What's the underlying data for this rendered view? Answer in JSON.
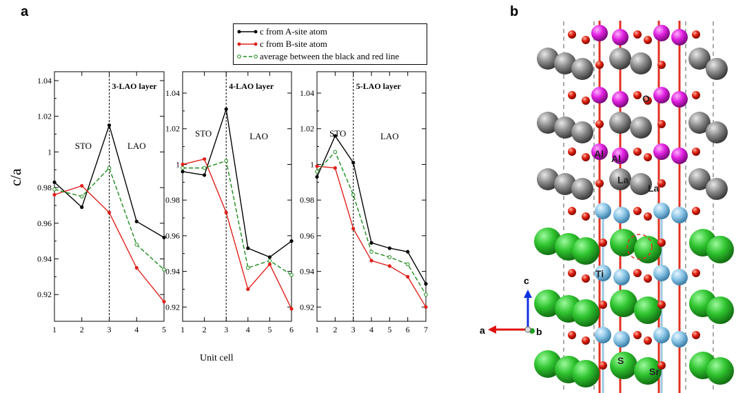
{
  "panel_labels": {
    "a": "a",
    "b": "b"
  },
  "legend": {
    "items": [
      {
        "label": "c from A-site atom",
        "color": "#000000",
        "style": "solid"
      },
      {
        "label": "c from B-site atom",
        "color": "#e0201a",
        "style": "solid"
      },
      {
        "label": "average between the black and red line",
        "color": "#1a8a1a",
        "style": "dashed"
      }
    ]
  },
  "axis": {
    "ylabel": "c/a",
    "xlabel": "Unit cell"
  },
  "structure": {
    "labels": [
      "O",
      "Al",
      "Al",
      "La",
      "La",
      "Ti",
      "S",
      "Sr"
    ],
    "axes": {
      "c": "c",
      "a": "a",
      "b": "b"
    }
  },
  "chart_data": [
    {
      "type": "line",
      "panel_title": "3-LAO layer",
      "region_labels": [
        "STO",
        "LAO"
      ],
      "x": [
        1,
        2,
        3,
        4,
        5
      ],
      "xlim": [
        1,
        5
      ],
      "ylim": [
        0.905,
        1.045
      ],
      "yticks": [
        0.92,
        0.94,
        0.96,
        0.98,
        1,
        1.02,
        1.04
      ],
      "ytick_labels": [
        "0.92",
        "0.94",
        "0.96",
        "0.98",
        "1",
        "1.02",
        "1.04"
      ],
      "divider_x": 3,
      "series": [
        {
          "name": "c from A-site atom",
          "values": [
            0.983,
            0.969,
            1.015,
            0.961,
            0.952
          ]
        },
        {
          "name": "c from B-site atom",
          "values": [
            0.976,
            0.981,
            0.966,
            0.935,
            0.916
          ]
        },
        {
          "name": "average between the black and red line",
          "values": [
            0.979,
            0.975,
            0.991,
            0.948,
            0.934
          ]
        }
      ]
    },
    {
      "type": "line",
      "panel_title": "4-LAO layer",
      "region_labels": [
        "STO",
        "LAO"
      ],
      "x": [
        1,
        2,
        3,
        4,
        5,
        6
      ],
      "xlim": [
        1,
        6
      ],
      "ylim": [
        0.912,
        1.052
      ],
      "yticks": [
        0.92,
        0.94,
        0.96,
        0.98,
        1,
        1.02,
        1.04
      ],
      "ytick_labels": [
        "0.92",
        "0.94",
        "0.96",
        "0.98",
        "1",
        "1.02",
        "1.04"
      ],
      "divider_x": 3,
      "series": [
        {
          "name": "c from A-site atom",
          "values": [
            0.996,
            0.994,
            1.031,
            0.953,
            0.948,
            0.957
          ]
        },
        {
          "name": "c from B-site atom",
          "values": [
            1.0,
            1.003,
            0.973,
            0.93,
            0.944,
            0.919
          ]
        },
        {
          "name": "average between the black and red line",
          "values": [
            0.998,
            0.998,
            1.002,
            0.942,
            0.946,
            0.938
          ]
        }
      ]
    },
    {
      "type": "line",
      "panel_title": "5-LAO layer",
      "region_labels": [
        "STO",
        "LAO"
      ],
      "x": [
        1,
        2,
        3,
        4,
        5,
        6,
        7
      ],
      "xlim": [
        1,
        7
      ],
      "ylim": [
        0.912,
        1.052
      ],
      "yticks": [
        0.92,
        0.94,
        0.96,
        0.98,
        1,
        1.02,
        1.04
      ],
      "ytick_labels": [
        "0.92",
        "0.94",
        "0.96",
        "0.98",
        "1",
        "1.02",
        "1.04"
      ],
      "divider_x": 3,
      "series": [
        {
          "name": "c from A-site atom",
          "values": [
            0.993,
            1.016,
            1.001,
            0.956,
            0.953,
            0.951,
            0.933
          ]
        },
        {
          "name": "c from B-site atom",
          "values": [
            0.999,
            0.998,
            0.964,
            0.946,
            0.943,
            0.937,
            0.92
          ]
        },
        {
          "name": "average between the black and red line",
          "values": [
            0.996,
            1.007,
            0.983,
            0.951,
            0.948,
            0.944,
            0.927
          ]
        }
      ]
    }
  ]
}
